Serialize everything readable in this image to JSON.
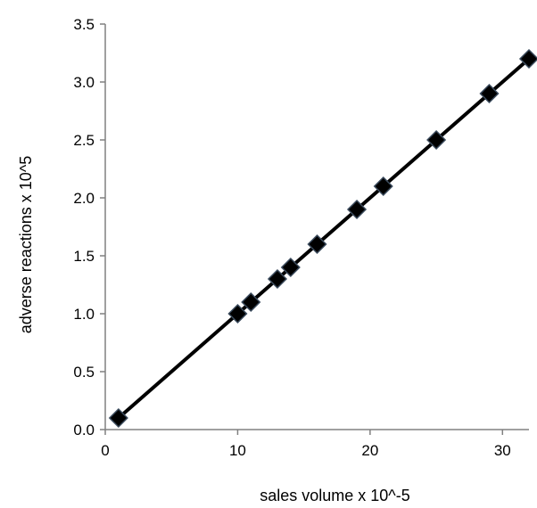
{
  "chart_data": {
    "type": "scatter",
    "title": "",
    "xlabel": "sales volume x 10^-5",
    "ylabel": "adverse reactions x 10^5",
    "xlim": [
      0,
      32
    ],
    "ylim": [
      0,
      3.5
    ],
    "xticks": [
      0,
      10,
      20,
      30
    ],
    "yticks": [
      0.0,
      0.5,
      1.0,
      1.5,
      2.0,
      2.5,
      3.0,
      3.5
    ],
    "ytick_labels": [
      "0.0",
      "0.5",
      "1.0",
      "1.5",
      "2.0",
      "2.5",
      "3.0",
      "3.5"
    ],
    "xtick_labels": [
      "0",
      "10",
      "20",
      "30"
    ],
    "grid": false,
    "legend": "none",
    "series": [
      {
        "marker": "diamond",
        "connected": true,
        "color": "#000000",
        "x": [
          1,
          10,
          11,
          13,
          14,
          16,
          19,
          21,
          25,
          29,
          32
        ],
        "y": [
          0.1,
          1.0,
          1.1,
          1.3,
          1.4,
          1.6,
          1.9,
          2.1,
          2.5,
          2.9,
          3.2
        ]
      }
    ]
  }
}
